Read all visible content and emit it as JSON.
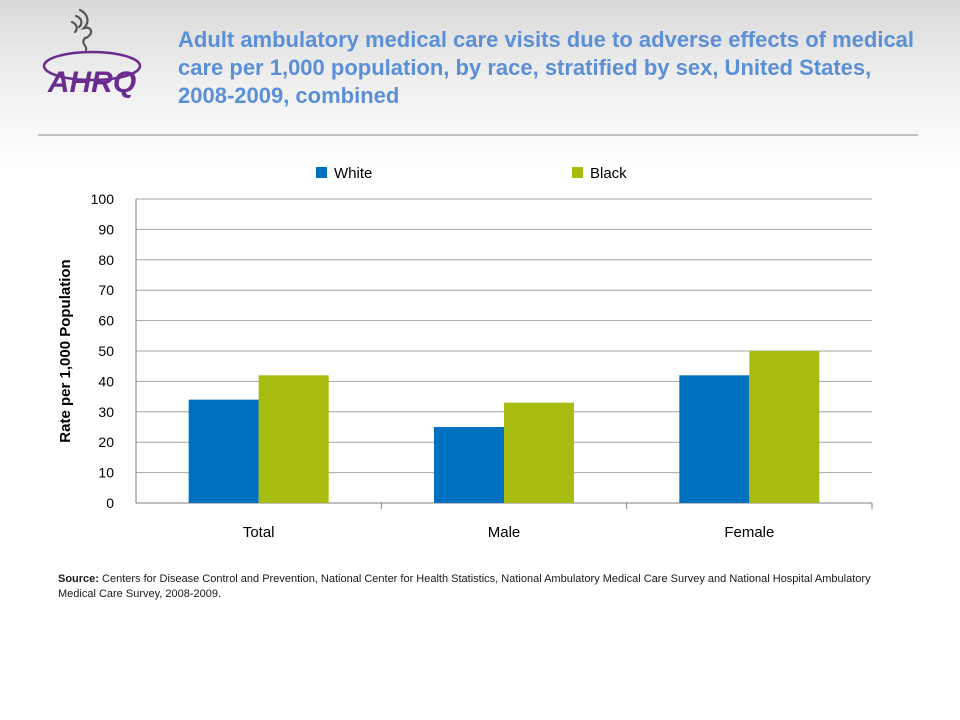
{
  "header": {
    "title": "Adult ambulatory medical care visits due to adverse effects of medical care per 1,000 population, by race, stratified by sex, United States, 2008-2009, combined",
    "logo_text": "AHRQ"
  },
  "source": {
    "label": "Source:",
    "text": "Centers for Disease Control and Prevention, National Center for Health Statistics, National Ambulatory Medical Care Survey and National Hospital Ambulatory Medical Care Survey, 2008-2009."
  },
  "colors": {
    "title": "#5b8fd6",
    "white_series": "#0070c0",
    "black_series": "#a8bb0f",
    "logo": "#6a2d8f"
  },
  "chart_data": {
    "type": "bar",
    "categories": [
      "Total",
      "Male",
      "Female"
    ],
    "series": [
      {
        "name": "White",
        "values": [
          34,
          25,
          42
        ],
        "color": "#0070c0"
      },
      {
        "name": "Black",
        "values": [
          42,
          33,
          50
        ],
        "color": "#a8bb0f"
      }
    ],
    "title": "",
    "xlabel": "",
    "ylabel": "Rate per 1,000 Population",
    "ylim": [
      0,
      100
    ],
    "yticks": [
      0,
      10,
      20,
      30,
      40,
      50,
      60,
      70,
      80,
      90,
      100
    ],
    "grid": true,
    "legend": "top"
  }
}
